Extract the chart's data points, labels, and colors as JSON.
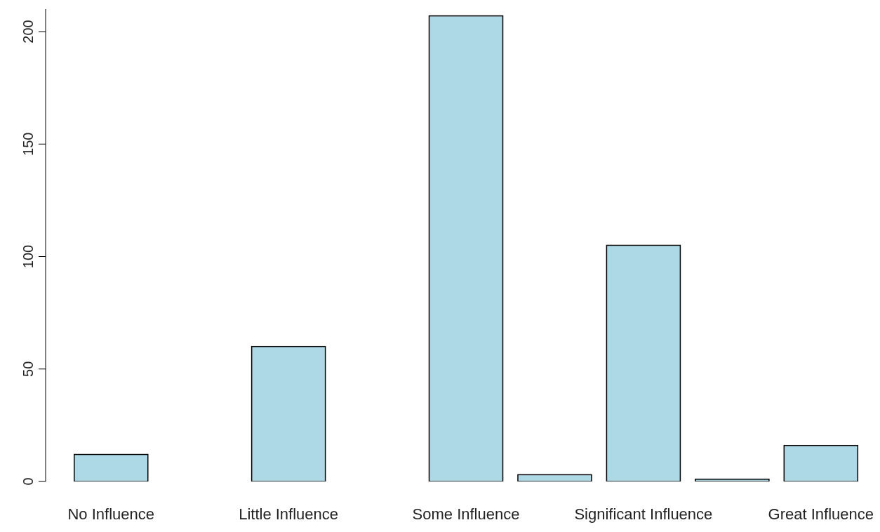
{
  "chart_data": {
    "type": "bar",
    "categories": [
      "No Influence",
      null,
      "Little Influence",
      null,
      "Some Influence",
      null,
      "Significant Influence",
      null,
      "Great Influence"
    ],
    "values": [
      12,
      0,
      60,
      0,
      207,
      3,
      105,
      1,
      16
    ],
    "color": "#add8e6",
    "ylim": [
      0,
      210
    ],
    "yticks": [
      0,
      50,
      100,
      150,
      200
    ],
    "grid": false
  }
}
